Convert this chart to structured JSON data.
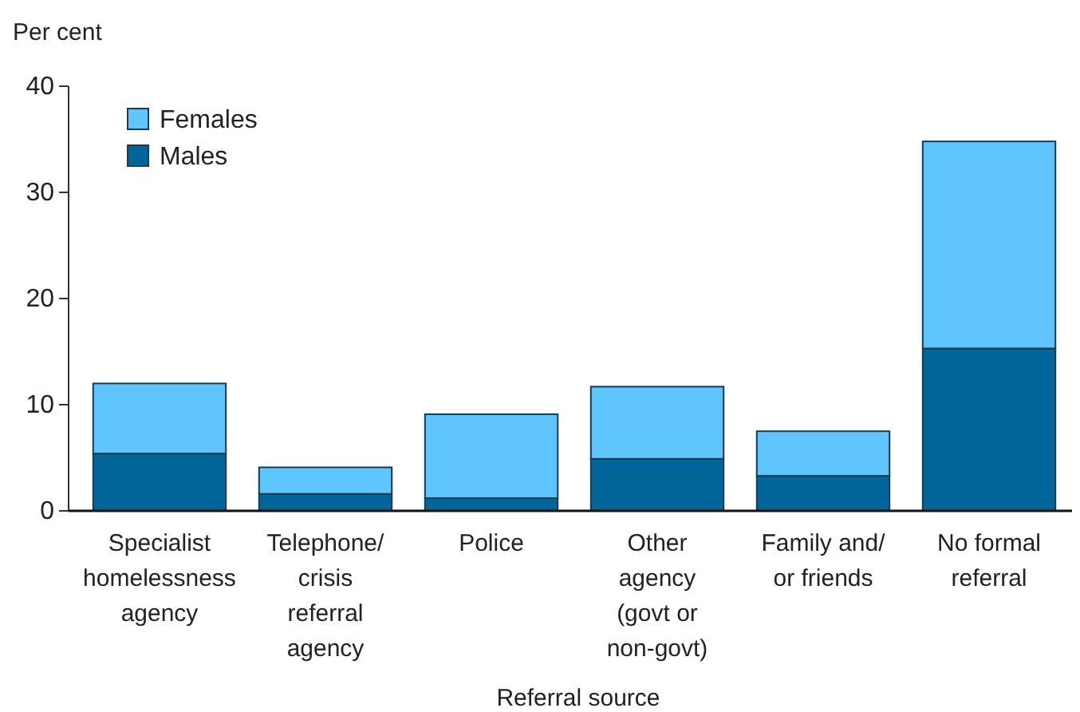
{
  "chart_data": {
    "type": "bar",
    "stacked": true,
    "ylabel": "Per cent",
    "xlabel": "Referral source",
    "categories": [
      "Specialist homelessness agency",
      "Telephone/ crisis referral agency",
      "Police",
      "Other agency (govt or non-govt)",
      "Family and/ or friends",
      "No formal referral"
    ],
    "series": [
      {
        "name": "Males",
        "color": "#006699",
        "values": [
          5.4,
          1.6,
          1.2,
          4.9,
          3.3,
          15.3
        ]
      },
      {
        "name": "Females",
        "color": "#5fc6fd",
        "values": [
          6.6,
          2.5,
          7.9,
          6.8,
          4.2,
          19.5
        ]
      }
    ],
    "ylim": [
      0,
      40
    ],
    "yticks": [
      0,
      10,
      20,
      30,
      40
    ],
    "grid": false,
    "legend": "top left"
  }
}
